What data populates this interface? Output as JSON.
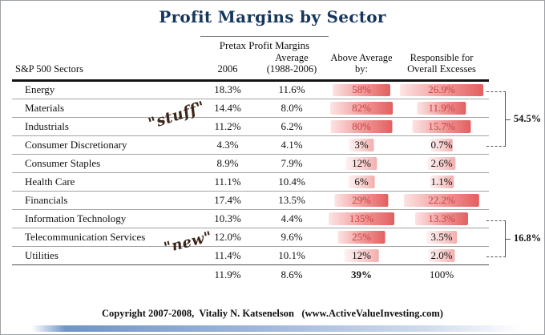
{
  "title": "Profit Margins by Sector",
  "group_header": "Pretax Profit Margins",
  "columns": {
    "sector": "S&P 500 Sectors",
    "y2006": "2006",
    "avg_line1": "Average",
    "avg_line2": "(1988-2006)",
    "above_line1": "Above Average",
    "above_line2": "by:",
    "resp_line1": "Responsible for",
    "resp_line2": "Overall Excesses"
  },
  "rows": [
    {
      "sector": "Energy",
      "y2006": "18.3%",
      "avg": "11.6%",
      "above": "58%",
      "resp": "26.9%",
      "above_w": 88,
      "resp_w": 88,
      "above_hot": true,
      "resp_hot": true
    },
    {
      "sector": "Materials",
      "y2006": "14.4%",
      "avg": "8.0%",
      "above": "82%",
      "resp": "11.9%",
      "above_w": 95,
      "resp_w": 52,
      "above_hot": true,
      "resp_hot": true
    },
    {
      "sector": "Industrials",
      "y2006": "11.2%",
      "avg": "6.2%",
      "above": "80%",
      "resp": "15.7%",
      "above_w": 94,
      "resp_w": 62,
      "above_hot": true,
      "resp_hot": true
    },
    {
      "sector": "Consumer Discretionary",
      "y2006": "4.3%",
      "avg": "4.1%",
      "above": "3%",
      "resp": "0.7%",
      "above_w": 38,
      "resp_w": 24,
      "above_hot": false,
      "resp_hot": false
    },
    {
      "sector": "Consumer Staples",
      "y2006": "8.9%",
      "avg": "7.9%",
      "above": "12%",
      "resp": "2.6%",
      "above_w": 48,
      "resp_w": 30,
      "above_hot": false,
      "resp_hot": false
    },
    {
      "sector": "Health Care",
      "y2006": "11.1%",
      "avg": "10.4%",
      "above": "6%",
      "resp": "1.1%",
      "above_w": 40,
      "resp_w": 25,
      "above_hot": false,
      "resp_hot": false
    },
    {
      "sector": "Financials",
      "y2006": "17.4%",
      "avg": "13.5%",
      "above": "29%",
      "resp": "22.2%",
      "above_w": 82,
      "resp_w": 80,
      "above_hot": true,
      "resp_hot": true
    },
    {
      "sector": "Information Technology",
      "y2006": "10.3%",
      "avg": "4.4%",
      "above": "135%",
      "resp": "13.3%",
      "above_w": 100,
      "resp_w": 56,
      "above_hot": true,
      "resp_hot": true
    },
    {
      "sector": "Telecommunication Services",
      "y2006": "12.0%",
      "avg": "9.6%",
      "above": "25%",
      "resp": "3.5%",
      "above_w": 72,
      "resp_w": 32,
      "above_hot": true,
      "resp_hot": false
    },
    {
      "sector": "Utilities",
      "y2006": "11.4%",
      "avg": "10.1%",
      "above": "12%",
      "resp": "2.0%",
      "above_w": 52,
      "resp_w": 28,
      "above_hot": false,
      "resp_hot": false
    }
  ],
  "totals": {
    "y2006": "11.9%",
    "avg": "8.6%",
    "above": "39%",
    "resp": "100%"
  },
  "brackets": [
    {
      "label": "54.5%"
    },
    {
      "label": "16.8%"
    }
  ],
  "annotations": {
    "stuff": "\"stuff\"",
    "new": "\"new\""
  },
  "footer": "Copyright 2007-2008,  Vitaliy N. Katsenelson   (www.ActiveValueInvesting.com)",
  "colors": {
    "title_navy": "#17365d",
    "hot_red": "#cc4040",
    "bar_light": "#fce4e4",
    "bar_mid": "#f29d9d",
    "bar_dark": "#e25f5f"
  },
  "chart_data": {
    "type": "table",
    "title": "Profit Margins by Sector",
    "group_header": "Pretax Profit Margins (spans 2006 and Average columns)",
    "columns": [
      "S&P 500 Sectors",
      "2006",
      "Average (1988-2006)",
      "Above Average by:",
      "Responsible for Overall Excesses"
    ],
    "units": "percent",
    "rows": [
      [
        "Energy",
        18.3,
        11.6,
        58,
        26.9
      ],
      [
        "Materials",
        14.4,
        8.0,
        82,
        11.9
      ],
      [
        "Industrials",
        11.2,
        6.2,
        80,
        15.7
      ],
      [
        "Consumer Discretionary",
        4.3,
        4.1,
        3,
        0.7
      ],
      [
        "Consumer Staples",
        8.9,
        7.9,
        12,
        2.6
      ],
      [
        "Health Care",
        11.1,
        10.4,
        6,
        1.1
      ],
      [
        "Financials",
        17.4,
        13.5,
        29,
        22.2
      ],
      [
        "Information Technology",
        10.3,
        4.4,
        135,
        13.3
      ],
      [
        "Telecommunication Services",
        12.0,
        9.6,
        25,
        3.5
      ],
      [
        "Utilities",
        11.4,
        10.1,
        12,
        2.0
      ]
    ],
    "totals": [
      "",
      11.9,
      8.6,
      39,
      100
    ],
    "annotations": [
      {
        "note": "\"stuff\"",
        "bracket_label": "54.5%",
        "bracket_rows": [
          "Energy",
          "Materials",
          "Industrials"
        ]
      },
      {
        "note": "\"new\"",
        "bracket_label": "16.8%",
        "bracket_rows": [
          "Information Technology",
          "Telecommunication Services"
        ]
      }
    ],
    "layout_hints": {
      "data_bars": "red gradient bars behind last two columns",
      "hot_text_color": "red for above-average excess sectors"
    }
  }
}
